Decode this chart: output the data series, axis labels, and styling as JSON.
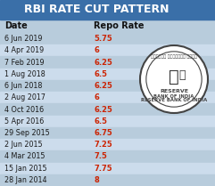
{
  "title": "RBI RATE CUT PATTERN",
  "col1_header": "Date",
  "col2_header": "Repo Rate",
  "rows": [
    [
      "6 Jun 2019",
      "5.75"
    ],
    [
      "4 Apr 2019",
      "6"
    ],
    [
      "7 Feb 2019",
      "6.25"
    ],
    [
      "1 Aug 2018",
      "6.5"
    ],
    [
      "6 Jun 2018",
      "6.25"
    ],
    [
      "2 Aug 2017",
      "6"
    ],
    [
      "4 Oct 2016",
      "6.25"
    ],
    [
      "5 Apr 2016",
      "6.5"
    ],
    [
      "29 Sep 2015",
      "6.75"
    ],
    [
      "2 Jun 2015",
      "7.25"
    ],
    [
      "4 Mar 2015",
      "7.5"
    ],
    [
      "15 Jan 2015",
      "7.75"
    ],
    [
      "28 Jan 2014",
      "8"
    ]
  ],
  "bg_light": "#ccdcec",
  "bg_dark": "#b8ccdc",
  "title_bg": "#3a6fa8",
  "title_color": "#ffffff",
  "date_color": "#1a1a1a",
  "rate_color": "#cc2200",
  "header_color": "#111111",
  "logo_edge": "#444444",
  "logo_fill": "#e8e8e8",
  "fig_w": 2.41,
  "fig_h": 2.09,
  "dpi": 100
}
